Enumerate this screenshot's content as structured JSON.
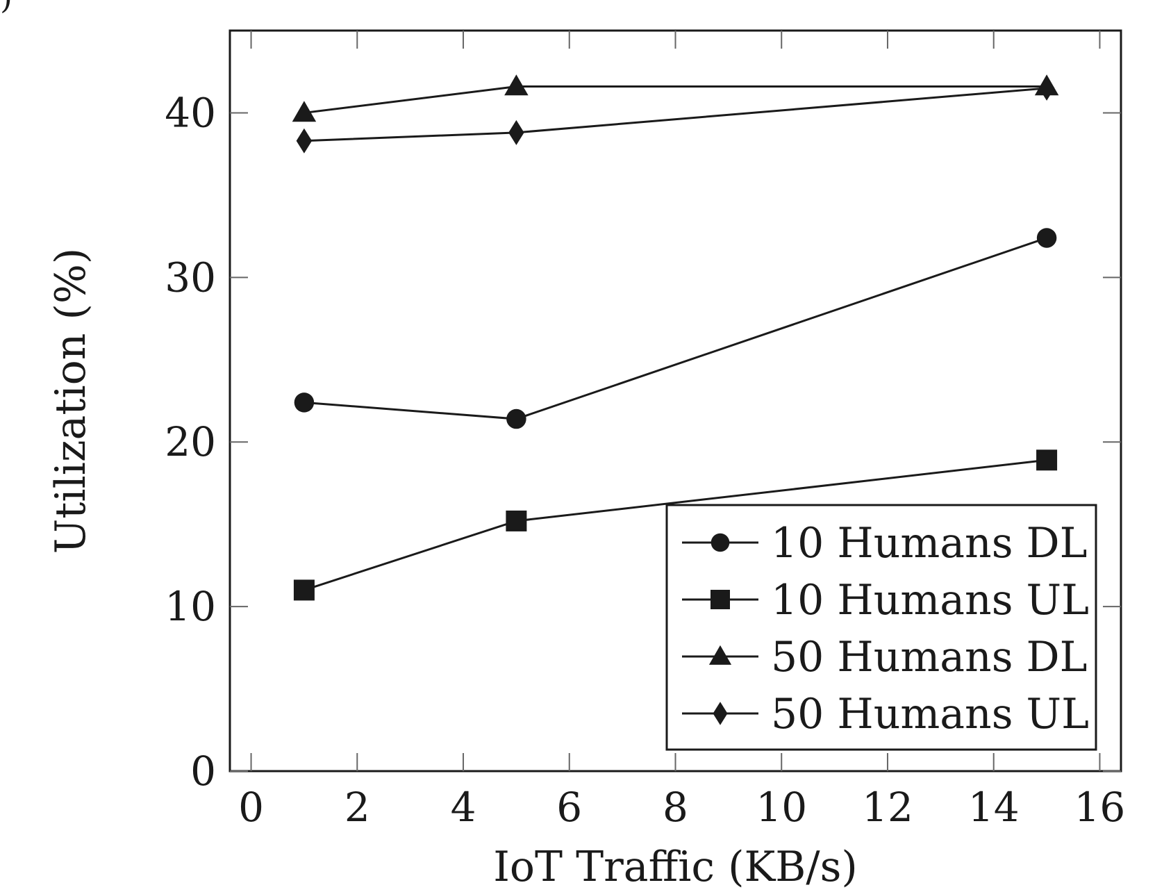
{
  "corner_mark": ")",
  "chart_data": {
    "type": "line",
    "xlabel": "IoT Traffic (KB/s)",
    "ylabel": "Utilization (%)",
    "xlim": [
      -0.4,
      16.4
    ],
    "ylim": [
      0,
      45
    ],
    "x_ticks": [
      0,
      2,
      4,
      6,
      8,
      10,
      12,
      14,
      16
    ],
    "y_ticks": [
      0,
      10,
      20,
      30,
      40
    ],
    "grid": false,
    "legend_position": "bottom-right",
    "series": [
      {
        "name": "10 Humans DL",
        "marker": "circle",
        "x": [
          1,
          5,
          15
        ],
        "values": [
          22.4,
          21.4,
          32.4
        ]
      },
      {
        "name": "10 Humans UL",
        "marker": "square",
        "x": [
          1,
          5,
          15
        ],
        "values": [
          11.0,
          15.2,
          18.9
        ]
      },
      {
        "name": "50 Humans DL",
        "marker": "triangle",
        "x": [
          1,
          5,
          15
        ],
        "values": [
          40.0,
          41.6,
          41.6
        ]
      },
      {
        "name": "50 Humans UL",
        "marker": "diamond",
        "x": [
          1,
          5,
          15
        ],
        "values": [
          38.3,
          38.8,
          41.5
        ]
      }
    ],
    "colors": {
      "line": "#1a1a1a",
      "frame": "#1a1a1a"
    }
  }
}
